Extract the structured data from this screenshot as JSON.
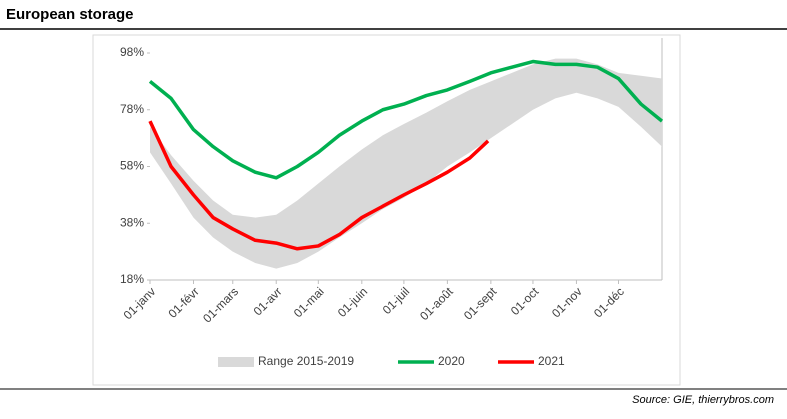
{
  "title": "European storage",
  "source": "Source: GIE, thierrybros.com",
  "chart_data": {
    "type": "line",
    "xlim": [
      0,
      365
    ],
    "xticks": [
      {
        "value": 0,
        "label": "01-janv"
      },
      {
        "value": 31,
        "label": "01-févr"
      },
      {
        "value": 59,
        "label": "01-mars"
      },
      {
        "value": 90,
        "label": "01-avr"
      },
      {
        "value": 120,
        "label": "01-mai"
      },
      {
        "value": 151,
        "label": "01-juin"
      },
      {
        "value": 181,
        "label": "01-juil"
      },
      {
        "value": 212,
        "label": "01-août"
      },
      {
        "value": 243,
        "label": "01-sept"
      },
      {
        "value": 273,
        "label": "01-oct"
      },
      {
        "value": 304,
        "label": "01-nov"
      },
      {
        "value": 334,
        "label": "01-déc"
      }
    ],
    "ylim": [
      18,
      98
    ],
    "yticks": [
      {
        "value": 18,
        "label": "18%"
      },
      {
        "value": 38,
        "label": "38%"
      },
      {
        "value": 58,
        "label": "58%"
      },
      {
        "value": 78,
        "label": "78%"
      },
      {
        "value": 98,
        "label": "98%"
      }
    ],
    "series": [
      {
        "name": "Range 2015-2019",
        "color": "#d9d9d9",
        "x": [
          0,
          15,
          31,
          45,
          59,
          75,
          90,
          105,
          120,
          135,
          151,
          166,
          181,
          197,
          212,
          228,
          243,
          258,
          273,
          289,
          304,
          319,
          334,
          350,
          365
        ],
        "low": [
          63,
          52,
          40,
          33,
          28,
          24,
          22,
          24,
          28,
          33,
          38,
          43,
          47,
          52,
          58,
          63,
          68,
          73,
          78,
          82,
          84,
          82,
          79,
          72,
          65
        ],
        "high": [
          72,
          62,
          53,
          46,
          41,
          40,
          41,
          46,
          52,
          58,
          64,
          69,
          73,
          77,
          81,
          85,
          88,
          91,
          94,
          96,
          96,
          94,
          91,
          90,
          89
        ]
      },
      {
        "name": "2020",
        "color": "#00b050",
        "x": [
          0,
          15,
          31,
          45,
          59,
          75,
          90,
          105,
          120,
          135,
          151,
          166,
          181,
          197,
          212,
          228,
          243,
          258,
          273,
          289,
          304,
          319,
          334,
          350,
          365
        ],
        "values": [
          88,
          82,
          71,
          65,
          60,
          56,
          54,
          58,
          63,
          69,
          74,
          78,
          80,
          83,
          85,
          88,
          91,
          93,
          95,
          94,
          94,
          93,
          89,
          80,
          74
        ]
      },
      {
        "name": "2021",
        "color": "#ff0000",
        "x": [
          0,
          15,
          31,
          45,
          59,
          75,
          90,
          105,
          120,
          135,
          151,
          166,
          181,
          197,
          212,
          228,
          241
        ],
        "values": [
          74,
          58,
          48,
          40,
          36,
          32,
          31,
          29,
          30,
          34,
          40,
          44,
          48,
          52,
          56,
          61,
          67
        ]
      }
    ]
  }
}
